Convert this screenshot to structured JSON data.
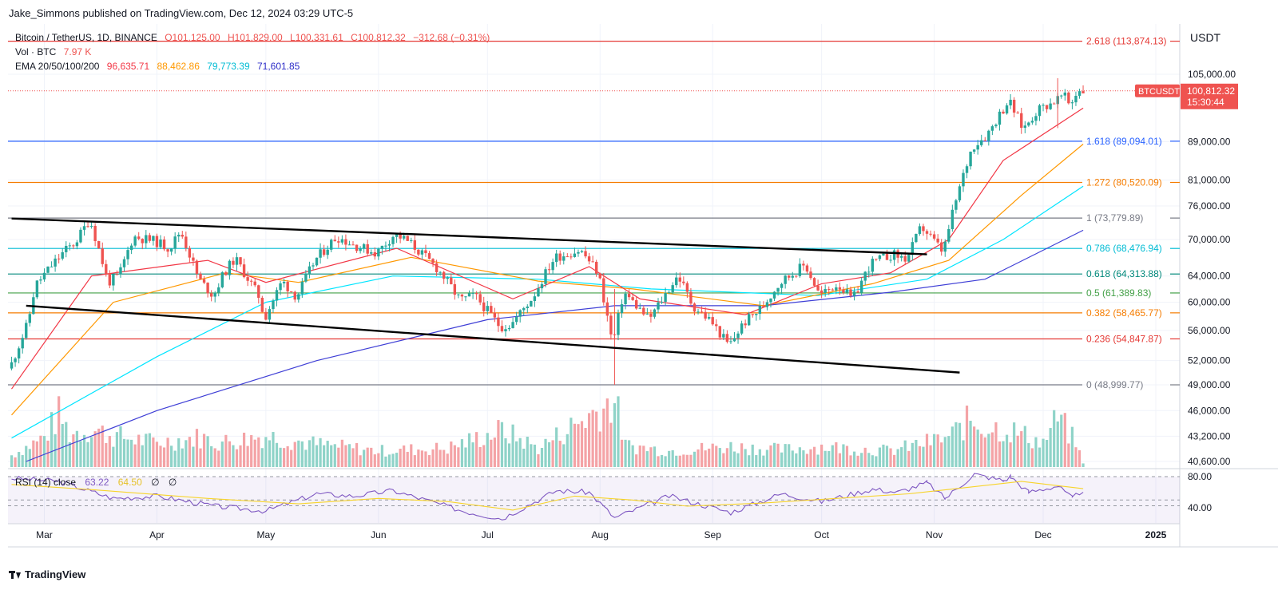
{
  "header": {
    "publisher": "Jake_Simmons published on TradingView.com, Dec 12, 2024 03:29 UTC-5"
  },
  "legend": {
    "symbol": "Bitcoin / TetherUS, 1D, BINANCE",
    "o": "O101,125.00",
    "h": "H101,829.00",
    "l": "L100,331.61",
    "c": "C100,812.32",
    "chg": "−312.68 (−0.31%)",
    "vol_label": "Vol · BTC",
    "vol_value": "7.97 K",
    "ema_label": "EMA 20/50/100/200",
    "ema20": "96,635.71",
    "ema50": "88,462.86",
    "ema100": "79,773.39",
    "ema200": "71,601.85"
  },
  "rsi_legend": {
    "label": "RSI (14) close",
    "rsi": "63.22",
    "ma": "64.50",
    "s1": "∅",
    "s2": "∅"
  },
  "footer": {
    "brand": "TradingView"
  },
  "colors": {
    "up": "#26a69a",
    "down": "#ef5350",
    "ema20": "#f23645",
    "ema50": "#ff9800",
    "ema100": "#00e5ff",
    "ema200": "#3f3fd6",
    "rsi": "#7e57c2",
    "rsi_ma": "#f7d42b"
  },
  "chart_data": {
    "type": "candlestick",
    "quote_currency": "USDT",
    "last_price_label": {
      "symbol": "BTCUSDT",
      "price": "100,812.32",
      "countdown": "15:30:44"
    },
    "price_axis_ticks": [
      "105,000.00",
      "89,000.00",
      "81,000.00",
      "76,000.00",
      "70,000.00",
      "64,000.00",
      "60,000.00",
      "56,000.00",
      "52,000.00",
      "49,000.00",
      "46,000.00",
      "43,200.00",
      "40,600.00"
    ],
    "rsi_axis_ticks": [
      "80.00",
      "40.00"
    ],
    "time_axis_ticks": [
      "Mar",
      "Apr",
      "May",
      "Jun",
      "Jul",
      "Aug",
      "Sep",
      "Oct",
      "Nov",
      "Dec",
      "2025"
    ],
    "fib_levels": [
      {
        "ratio": "2.618",
        "price": "113,874.13",
        "label": "2.618 (113,874.13)",
        "color": "#e53935"
      },
      {
        "ratio": "1.618",
        "price": "89,094.01",
        "label": "1.618 (89,094.01)",
        "color": "#2962ff"
      },
      {
        "ratio": "1.272",
        "price": "80,520.09",
        "label": "1.272 (80,520.09)",
        "color": "#f57c00"
      },
      {
        "ratio": "1",
        "price": "73,779.89",
        "label": "1 (73,779.89)",
        "color": "#787b86"
      },
      {
        "ratio": "0.786",
        "price": "68,476.94",
        "label": "0.786 (68,476.94)",
        "color": "#00bcd4"
      },
      {
        "ratio": "0.618",
        "price": "64,313.88",
        "label": "0.618 (64,313.88)",
        "color": "#00897b"
      },
      {
        "ratio": "0.5",
        "price": "61,389.83",
        "label": "0.5 (61,389.83)",
        "color": "#43a047"
      },
      {
        "ratio": "0.382",
        "price": "58,465.77",
        "label": "0.382 (58,465.77)",
        "color": "#f57c00"
      },
      {
        "ratio": "0.236",
        "price": "54,847.87",
        "label": "0.236 (54,847.87)",
        "color": "#e53935"
      },
      {
        "ratio": "0",
        "price": "48,999.77",
        "label": "0 (48,999.77)",
        "color": "#787b86"
      }
    ],
    "trendlines": [
      {
        "from": [
          "2024-02-21",
          73700
        ],
        "to": [
          "2024-10-30",
          67500
        ]
      },
      {
        "from": [
          "2024-02-25",
          59500
        ],
        "to": [
          "2024-11-08",
          50500
        ]
      }
    ],
    "price_points": [
      [
        "2024-02-21",
        51000
      ],
      [
        "2024-02-26",
        57000
      ],
      [
        "2024-02-28",
        62500
      ],
      [
        "2024-03-04",
        66000
      ],
      [
        "2024-03-07",
        68000
      ],
      [
        "2024-03-10",
        69500
      ],
      [
        "2024-03-13",
        72500
      ],
      [
        "2024-03-14",
        73700
      ],
      [
        "2024-03-19",
        63000
      ],
      [
        "2024-03-22",
        64000
      ],
      [
        "2024-03-26",
        70500
      ],
      [
        "2024-04-01",
        69700
      ],
      [
        "2024-04-05",
        68500
      ],
      [
        "2024-04-08",
        71500
      ],
      [
        "2024-04-13",
        63500
      ],
      [
        "2024-04-17",
        61000
      ],
      [
        "2024-04-20",
        64500
      ],
      [
        "2024-04-23",
        66800
      ],
      [
        "2024-04-30",
        60500
      ],
      [
        "2024-05-01",
        57500
      ],
      [
        "2024-05-06",
        63200
      ],
      [
        "2024-05-10",
        60800
      ],
      [
        "2024-05-15",
        66500
      ],
      [
        "2024-05-21",
        70500
      ],
      [
        "2024-05-26",
        69000
      ],
      [
        "2024-06-01",
        67700
      ],
      [
        "2024-06-06",
        71000
      ],
      [
        "2024-06-10",
        69500
      ],
      [
        "2024-06-18",
        65000
      ],
      [
        "2024-06-24",
        60300
      ],
      [
        "2024-06-28",
        61000
      ],
      [
        "2024-07-05",
        56500
      ],
      [
        "2024-07-08",
        56800
      ],
      [
        "2024-07-14",
        60800
      ],
      [
        "2024-07-20",
        67000
      ],
      [
        "2024-07-27",
        68200
      ],
      [
        "2024-07-29",
        66800
      ],
      [
        "2024-08-01",
        64500
      ],
      [
        "2024-08-05",
        54000
      ],
      [
        "2024-08-08",
        61500
      ],
      [
        "2024-08-15",
        57500
      ],
      [
        "2024-08-23",
        64100
      ],
      [
        "2024-08-27",
        59500
      ],
      [
        "2024-09-01",
        57300
      ],
      [
        "2024-09-06",
        53900
      ],
      [
        "2024-09-10",
        57000
      ],
      [
        "2024-09-15",
        59200
      ],
      [
        "2024-09-20",
        63000
      ],
      [
        "2024-09-27",
        65800
      ],
      [
        "2024-10-01",
        61000
      ],
      [
        "2024-10-06",
        62800
      ],
      [
        "2024-10-10",
        60300
      ],
      [
        "2024-10-15",
        66000
      ],
      [
        "2024-10-21",
        67500
      ],
      [
        "2024-10-25",
        66700
      ],
      [
        "2024-10-29",
        72300
      ],
      [
        "2024-11-04",
        67800
      ],
      [
        "2024-11-07",
        75800
      ],
      [
        "2024-11-12",
        88000
      ],
      [
        "2024-11-16",
        90500
      ],
      [
        "2024-11-22",
        98500
      ],
      [
        "2024-11-26",
        91800
      ],
      [
        "2024-11-30",
        96300
      ],
      [
        "2024-12-05",
        98500
      ],
      [
        "2024-12-07",
        99800
      ],
      [
        "2024-12-09",
        97200
      ],
      [
        "2024-12-11",
        101200
      ],
      [
        "2024-12-12",
        100812
      ]
    ],
    "ema20_points": [
      [
        "2024-02-21",
        48500
      ],
      [
        "2024-03-14",
        64000
      ],
      [
        "2024-04-15",
        66500
      ],
      [
        "2024-05-01",
        63000
      ],
      [
        "2024-06-06",
        68500
      ],
      [
        "2024-07-08",
        60500
      ],
      [
        "2024-07-29",
        65500
      ],
      [
        "2024-08-12",
        60500
      ],
      [
        "2024-09-10",
        58200
      ],
      [
        "2024-10-01",
        62800
      ],
      [
        "2024-10-20",
        64500
      ],
      [
        "2024-11-05",
        70000
      ],
      [
        "2024-11-20",
        85000
      ],
      [
        "2024-12-12",
        96636
      ]
    ],
    "ema50_points": [
      [
        "2024-02-21",
        45500
      ],
      [
        "2024-03-20",
        60000
      ],
      [
        "2024-04-20",
        64500
      ],
      [
        "2024-05-10",
        63000
      ],
      [
        "2024-06-10",
        67000
      ],
      [
        "2024-07-15",
        63200
      ],
      [
        "2024-08-10",
        62000
      ],
      [
        "2024-09-15",
        59500
      ],
      [
        "2024-10-15",
        62800
      ],
      [
        "2024-11-05",
        66500
      ],
      [
        "2024-11-25",
        78000
      ],
      [
        "2024-12-12",
        88463
      ]
    ],
    "ema100_points": [
      [
        "2024-02-21",
        43000
      ],
      [
        "2024-04-01",
        52500
      ],
      [
        "2024-05-01",
        60000
      ],
      [
        "2024-06-05",
        64000
      ],
      [
        "2024-07-15",
        63500
      ],
      [
        "2024-08-15",
        62000
      ],
      [
        "2024-09-30",
        61000
      ],
      [
        "2024-10-30",
        63500
      ],
      [
        "2024-11-20",
        70000
      ],
      [
        "2024-12-12",
        79773
      ]
    ],
    "ema200_points": [
      [
        "2024-02-25",
        40600
      ],
      [
        "2024-04-01",
        46000
      ],
      [
        "2024-05-15",
        52000
      ],
      [
        "2024-07-01",
        57500
      ],
      [
        "2024-08-05",
        59500
      ],
      [
        "2024-09-15",
        59500
      ],
      [
        "2024-10-20",
        61500
      ],
      [
        "2024-11-15",
        63500
      ],
      [
        "2024-12-12",
        71602
      ]
    ],
    "volume_points": [
      [
        "2024-02-21",
        0.22
      ],
      [
        "2024-03-01",
        0.55
      ],
      [
        "2024-03-05",
        0.97
      ],
      [
        "2024-03-08",
        0.62
      ],
      [
        "2024-03-14",
        0.7
      ],
      [
        "2024-03-20",
        0.58
      ],
      [
        "2024-04-01",
        0.45
      ],
      [
        "2024-04-13",
        0.55
      ],
      [
        "2024-04-18",
        0.45
      ],
      [
        "2024-05-01",
        0.58
      ],
      [
        "2024-05-15",
        0.42
      ],
      [
        "2024-06-01",
        0.3
      ],
      [
        "2024-06-20",
        0.35
      ],
      [
        "2024-07-05",
        0.68
      ],
      [
        "2024-07-15",
        0.35
      ],
      [
        "2024-08-05",
        1.25
      ],
      [
        "2024-08-08",
        0.4
      ],
      [
        "2024-08-20",
        0.3
      ],
      [
        "2024-09-06",
        0.38
      ],
      [
        "2024-09-20",
        0.32
      ],
      [
        "2024-10-01",
        0.38
      ],
      [
        "2024-10-20",
        0.3
      ],
      [
        "2024-11-05",
        0.55
      ],
      [
        "2024-11-11",
        0.88
      ],
      [
        "2024-11-13",
        0.78
      ],
      [
        "2024-11-22",
        0.68
      ],
      [
        "2024-12-01",
        0.45
      ],
      [
        "2024-12-05",
        0.92
      ],
      [
        "2024-12-10",
        0.45
      ],
      [
        "2024-12-12",
        0.06
      ]
    ],
    "rsi_points": [
      [
        "2024-02-21",
        78
      ],
      [
        "2024-03-05",
        74
      ],
      [
        "2024-03-20",
        52
      ],
      [
        "2024-04-01",
        55
      ],
      [
        "2024-04-17",
        42
      ],
      [
        "2024-05-01",
        36
      ],
      [
        "2024-05-15",
        58
      ],
      [
        "2024-05-25",
        55
      ],
      [
        "2024-06-05",
        62
      ],
      [
        "2024-06-25",
        35
      ],
      [
        "2024-07-05",
        26
      ],
      [
        "2024-07-20",
        62
      ],
      [
        "2024-07-29",
        60
      ],
      [
        "2024-08-05",
        27
      ],
      [
        "2024-08-20",
        55
      ],
      [
        "2024-09-06",
        34
      ],
      [
        "2024-09-20",
        58
      ],
      [
        "2024-10-01",
        48
      ],
      [
        "2024-10-15",
        64
      ],
      [
        "2024-10-22",
        60
      ],
      [
        "2024-10-30",
        72
      ],
      [
        "2024-11-04",
        52
      ],
      [
        "2024-11-12",
        83
      ],
      [
        "2024-11-20",
        75
      ],
      [
        "2024-11-22",
        80
      ],
      [
        "2024-11-27",
        60
      ],
      [
        "2024-12-05",
        68
      ],
      [
        "2024-12-09",
        52
      ],
      [
        "2024-12-12",
        63
      ]
    ],
    "rsi_ma_points": [
      [
        "2024-02-21",
        70
      ],
      [
        "2024-03-15",
        63
      ],
      [
        "2024-04-15",
        52
      ],
      [
        "2024-05-10",
        45
      ],
      [
        "2024-06-01",
        52
      ],
      [
        "2024-06-20",
        48
      ],
      [
        "2024-07-08",
        37
      ],
      [
        "2024-07-25",
        55
      ],
      [
        "2024-08-10",
        50
      ],
      [
        "2024-08-25",
        42
      ],
      [
        "2024-09-15",
        46
      ],
      [
        "2024-10-05",
        52
      ],
      [
        "2024-10-25",
        58
      ],
      [
        "2024-11-10",
        66
      ],
      [
        "2024-11-25",
        74
      ],
      [
        "2024-12-12",
        64.5
      ]
    ]
  }
}
